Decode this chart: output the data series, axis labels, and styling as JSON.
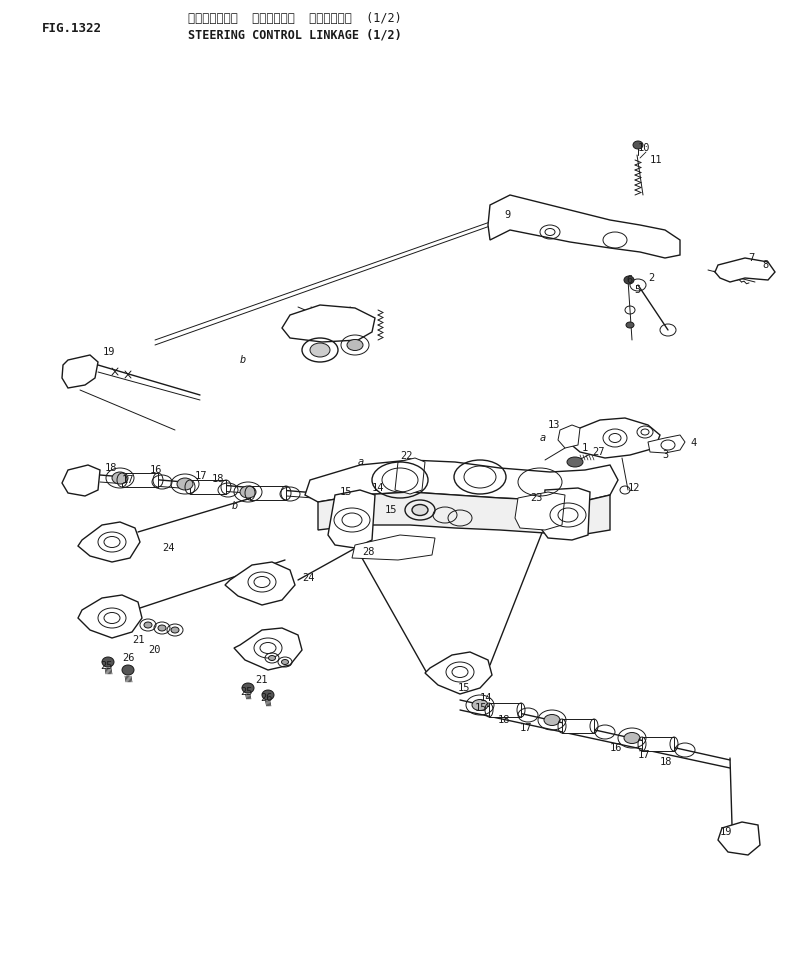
{
  "title_japanese": "ステアリング゚  コントロール  リンケージ゚  (1/2)",
  "title_english": "STEERING CONTROL LINKAGE (1/2)",
  "fig_label": "FIG.1322",
  "bg_color": "#ffffff",
  "line_color": "#1a1a1a",
  "text_color": "#1a1a1a",
  "fig_width": 7.89,
  "fig_height": 9.67,
  "dpi": 100,
  "header_font_size": 8.5,
  "label_font_size": 7.5,
  "lw_thin": 0.7,
  "lw_med": 1.0,
  "lw_thick": 1.4
}
